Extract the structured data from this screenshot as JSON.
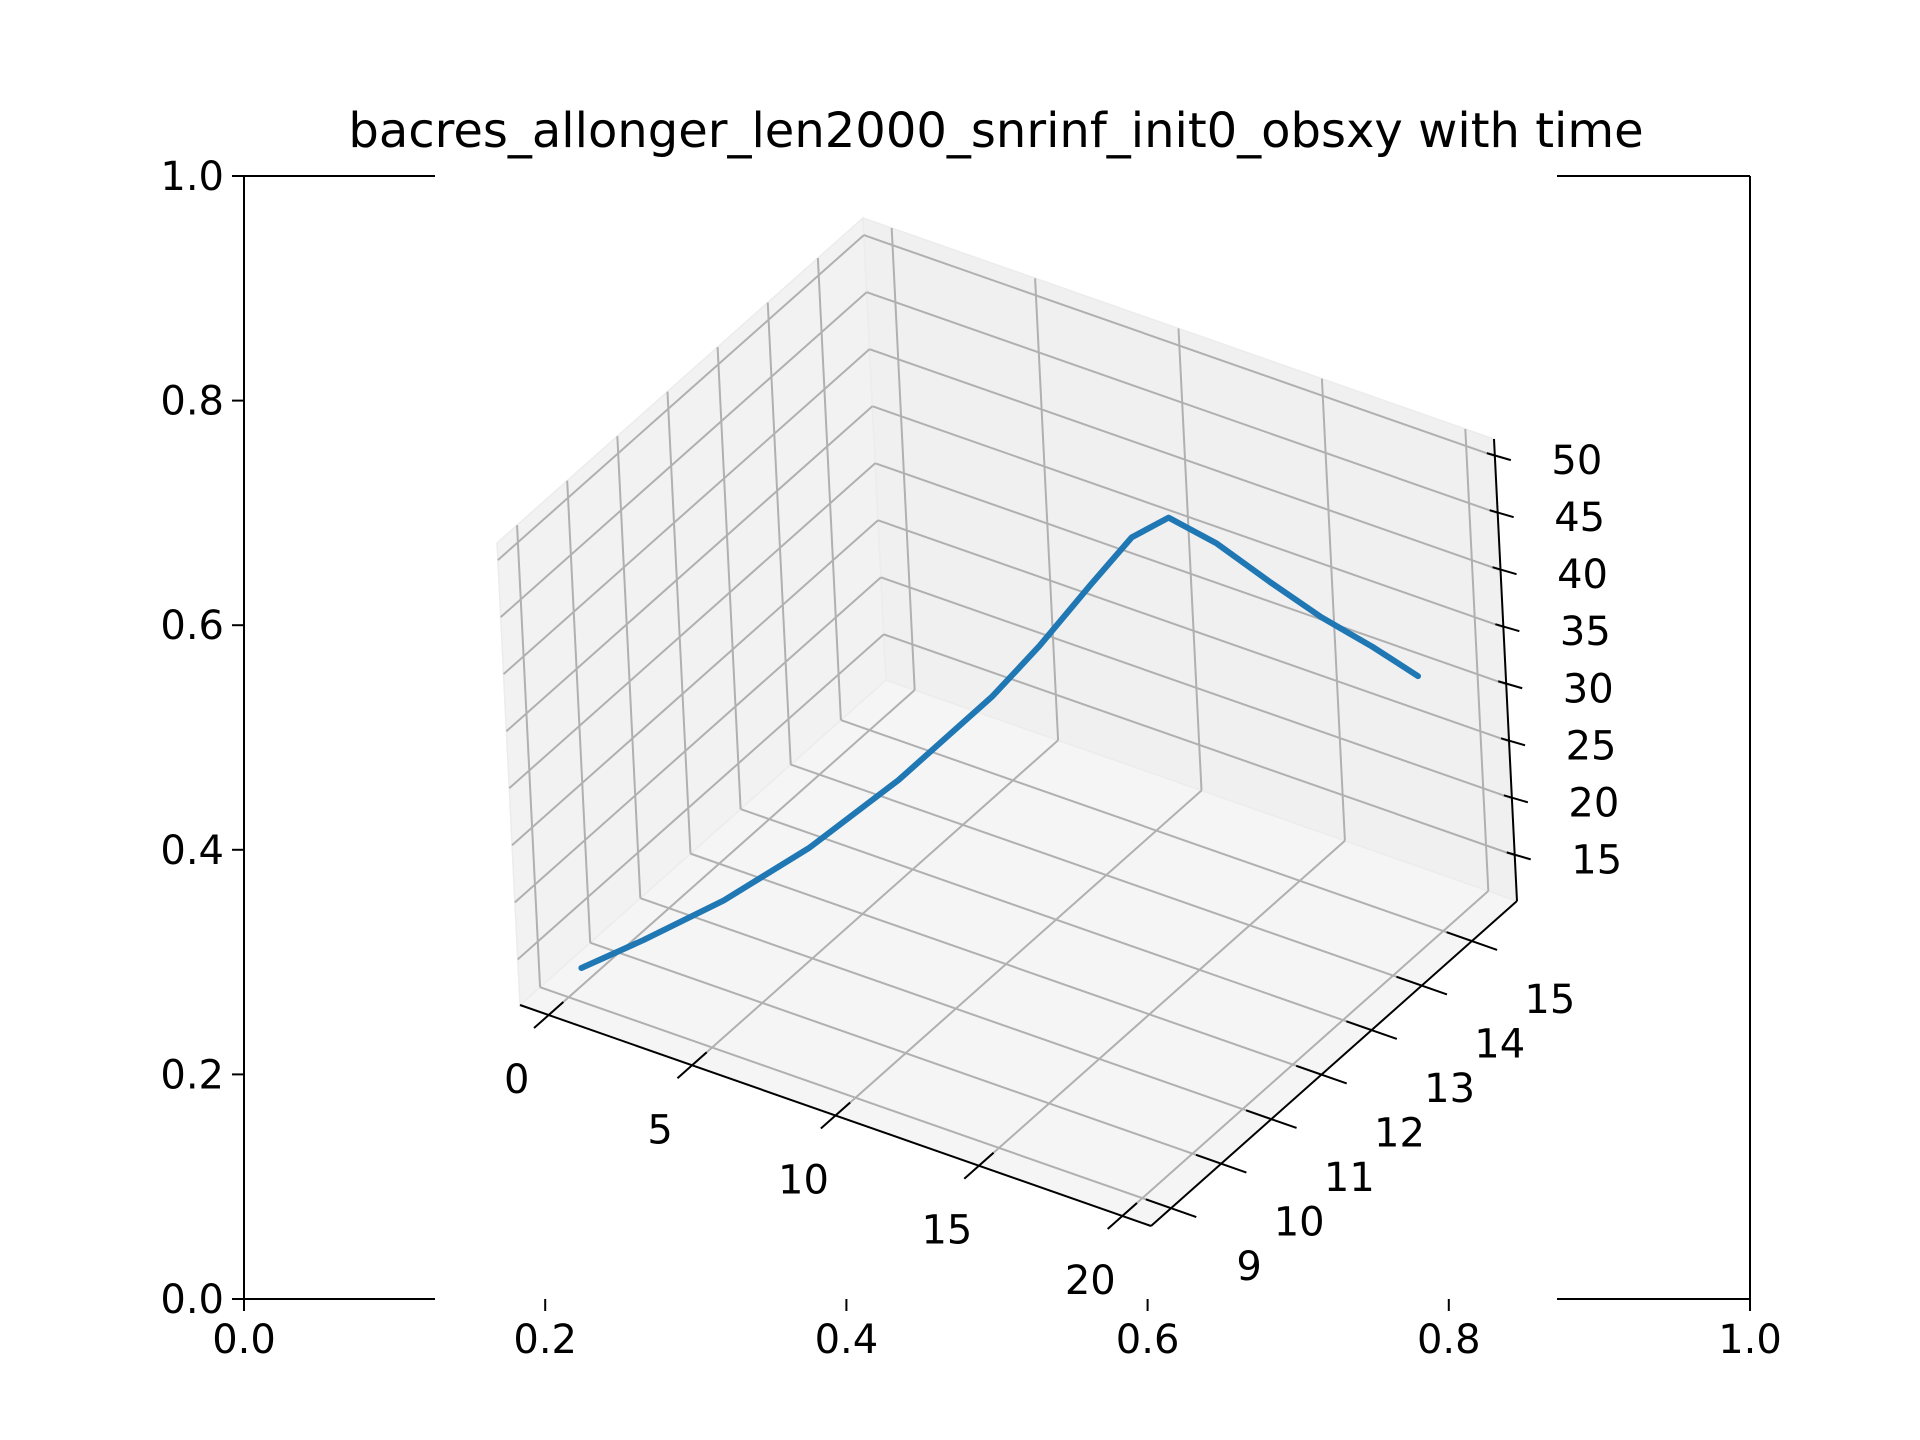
{
  "chart_data": {
    "type": "line",
    "title": "bacres_allonger_len2000_snrinf_init0_obsxy with time",
    "outer_axes": {
      "xlim": [
        0.0,
        1.0
      ],
      "ylim": [
        0.0,
        1.0
      ],
      "xticks": [
        "0.0",
        "0.2",
        "0.4",
        "0.6",
        "0.8",
        "1.0"
      ],
      "yticks": [
        "0.0",
        "0.2",
        "0.4",
        "0.6",
        "0.8",
        "1.0"
      ]
    },
    "axes3d": {
      "x_ticks": [
        "0",
        "5",
        "10",
        "15",
        "20"
      ],
      "y_ticks": [
        "9",
        "10",
        "11",
        "12",
        "13",
        "14",
        "15"
      ],
      "z_ticks": [
        "15",
        "20",
        "25",
        "30",
        "35",
        "40",
        "45",
        "50"
      ],
      "grid": true
    },
    "series": [
      {
        "color": "#1f77b4",
        "x": [
          0.5,
          2,
          4,
          6,
          8,
          10,
          11,
          12,
          12.8,
          13.4,
          14.3,
          15.4,
          16.6,
          17.8,
          19.0
        ],
        "y": [
          9.0,
          9.4,
          9.9,
          10.5,
          11.2,
          12.0,
          12.4,
          12.9,
          13.3,
          13.7,
          14.1,
          14.5,
          14.8,
          15.1,
          15.3
        ],
        "z": [
          14.0,
          16.2,
          19.5,
          23.5,
          28.5,
          34.5,
          38.2,
          42.5,
          45.8,
          46.5,
          43.5,
          39.5,
          36.3,
          33.6,
          31.3
        ]
      }
    ]
  }
}
